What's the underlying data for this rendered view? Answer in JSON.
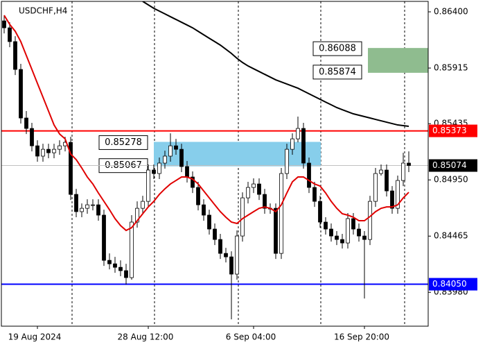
{
  "chart_data": {
    "type": "candlestick",
    "title": "USDCHF,H4",
    "categories": [
      null,
      null,
      null,
      null,
      null,
      null,
      "19 Aug 2024",
      null,
      null,
      null,
      null,
      null,
      null,
      null,
      null,
      null,
      null,
      null,
      null,
      null,
      null,
      null,
      null,
      null,
      null,
      null,
      "28 Aug 12:00",
      null,
      null,
      null,
      null,
      null,
      null,
      null,
      null,
      null,
      null,
      null,
      null,
      null,
      null,
      null,
      null,
      null,
      null,
      "6 Sep 04:00",
      null,
      null,
      null,
      null,
      null,
      null,
      null,
      null,
      null,
      null,
      null,
      null,
      null,
      null,
      null,
      null,
      null,
      null,
      null,
      "16 Sep 20:00",
      null,
      null,
      null,
      null,
      null,
      null,
      null,
      null
    ],
    "open": [
      0.86322,
      0.86262,
      0.86143,
      0.85903,
      0.85484,
      0.85394,
      0.85244,
      0.85155,
      0.85214,
      0.85184,
      0.85214,
      0.85244,
      0.85274,
      0.84825,
      0.84676,
      0.84705,
      0.84735,
      0.84735,
      0.84646,
      0.84256,
      0.84226,
      0.84196,
      0.84167,
      0.84107,
      0.84586,
      0.84705,
      0.84765,
      0.85035,
      0.85005,
      0.85095,
      0.85155,
      0.85244,
      0.85214,
      0.85065,
      0.84975,
      0.84885,
      0.84735,
      0.84646,
      0.84526,
      0.84436,
      0.84316,
      0.84286,
      0.84137,
      0.84466,
      0.84795,
      0.84885,
      0.84915,
      0.84825,
      0.84705,
      0.84705,
      0.84316,
      0.85005,
      0.85214,
      0.85304,
      0.85394,
      0.85095,
      0.84885,
      0.84765,
      0.84586,
      0.84526,
      0.84466,
      0.84436,
      0.84406,
      0.84616,
      0.84526,
      0.84466,
      0.84436,
      0.84765,
      0.85005,
      0.85035,
      0.84855,
      0.84705,
      0.84945,
      0.85095
    ],
    "high": [
      0.8637,
      0.8631,
      0.8619,
      0.85951,
      0.85544,
      0.85442,
      0.85292,
      0.85262,
      0.85262,
      0.85262,
      0.85292,
      0.85322,
      0.85322,
      0.84873,
      0.84747,
      0.84783,
      0.84783,
      0.84783,
      0.84693,
      0.84316,
      0.84286,
      0.84256,
      0.84226,
      0.84646,
      0.84765,
      0.84813,
      0.85083,
      0.85083,
      0.85143,
      0.85202,
      0.85352,
      0.85304,
      0.85262,
      0.85113,
      0.85023,
      0.84933,
      0.84783,
      0.84693,
      0.84574,
      0.84484,
      0.84364,
      0.84334,
      0.84514,
      0.84843,
      0.84933,
      0.84963,
      0.84963,
      0.84873,
      0.84747,
      0.84747,
      0.85053,
      0.85262,
      0.85352,
      0.85496,
      0.85442,
      0.85143,
      0.84933,
      0.84813,
      0.84628,
      0.84574,
      0.84508,
      0.84484,
      0.84664,
      0.84664,
      0.84574,
      0.84508,
      0.84813,
      0.85053,
      0.85083,
      0.85083,
      0.84897,
      0.84987,
      0.85184,
      0.85196
    ],
    "low": [
      0.86214,
      0.86095,
      0.85855,
      0.85436,
      0.85346,
      0.85196,
      0.85107,
      0.85107,
      0.85137,
      0.85137,
      0.85167,
      0.85196,
      0.84777,
      0.84628,
      0.84628,
      0.84658,
      0.84687,
      0.84598,
      0.84208,
      0.84178,
      0.84149,
      0.84119,
      0.84047,
      0.84089,
      0.84538,
      0.84658,
      0.84717,
      0.84957,
      0.84957,
      0.85047,
      0.85107,
      0.85167,
      0.85017,
      0.84927,
      0.84837,
      0.84687,
      0.84598,
      0.84478,
      0.84388,
      0.84268,
      0.84238,
      0.83747,
      0.84089,
      0.84418,
      0.84747,
      0.84837,
      0.84777,
      0.84658,
      0.84658,
      0.84268,
      0.84268,
      0.84957,
      0.85167,
      0.85274,
      0.85047,
      0.84837,
      0.84717,
      0.84538,
      0.84478,
      0.84418,
      0.84388,
      0.84358,
      0.84358,
      0.84478,
      0.84418,
      0.83927,
      0.84388,
      0.84717,
      0.84987,
      0.84807,
      0.84658,
      0.84658,
      0.84897,
      0.85017
    ],
    "close": [
      0.86262,
      0.86143,
      0.85903,
      0.85484,
      0.85394,
      0.85244,
      0.85155,
      0.85214,
      0.85184,
      0.85214,
      0.85244,
      0.85274,
      0.84825,
      0.84676,
      0.84705,
      0.84735,
      0.84735,
      0.84646,
      0.84256,
      0.84226,
      0.84196,
      0.84167,
      0.84107,
      0.84586,
      0.84705,
      0.84765,
      0.85035,
      0.85005,
      0.85095,
      0.85155,
      0.85244,
      0.85214,
      0.85065,
      0.84975,
      0.84885,
      0.84735,
      0.84646,
      0.84526,
      0.84436,
      0.84316,
      0.84286,
      0.84137,
      0.84466,
      0.84795,
      0.84885,
      0.84915,
      0.84825,
      0.84705,
      0.84705,
      0.84316,
      0.85005,
      0.85214,
      0.85304,
      0.85394,
      0.85095,
      0.84885,
      0.84765,
      0.84586,
      0.84526,
      0.84466,
      0.84436,
      0.84406,
      0.84616,
      0.84526,
      0.84466,
      0.84436,
      0.84765,
      0.85005,
      0.85035,
      0.84855,
      0.84705,
      0.84945,
      0.85095,
      0.85074
    ],
    "overlays": [
      {
        "color": "#e00000",
        "values": [
          0.8637,
          0.86292,
          0.86232,
          0.86143,
          0.86023,
          0.85903,
          0.85783,
          0.85664,
          0.85544,
          0.85424,
          0.85346,
          0.85304,
          0.85173,
          0.85125,
          0.85053,
          0.84975,
          0.84915,
          0.84837,
          0.84765,
          0.84693,
          0.84616,
          0.84556,
          0.84514,
          0.84538,
          0.84598,
          0.84658,
          0.84717,
          0.84765,
          0.84825,
          0.84873,
          0.84915,
          0.84945,
          0.84975,
          0.84975,
          0.84957,
          0.84915,
          0.84855,
          0.84795,
          0.84735,
          0.84676,
          0.84628,
          0.84586,
          0.84574,
          0.84616,
          0.84646,
          0.84676,
          0.84705,
          0.84717,
          0.84705,
          0.84676,
          0.84735,
          0.84837,
          0.84933,
          0.84975,
          0.84975,
          0.84945,
          0.84915,
          0.84897,
          0.84837,
          0.84765,
          0.84705,
          0.84658,
          0.84646,
          0.84628,
          0.84598,
          0.84598,
          0.84634,
          0.84676,
          0.84705,
          0.84717,
          0.84717,
          0.84735,
          0.84795,
          0.84843
        ]
      },
      {
        "color": "#000000",
        "values": [
          null,
          null,
          null,
          null,
          null,
          null,
          null,
          null,
          null,
          null,
          null,
          null,
          null,
          null,
          null,
          null,
          null,
          null,
          null,
          null,
          null,
          null,
          null,
          null,
          null,
          0.8649,
          0.8646,
          0.8643,
          0.86406,
          0.86382,
          0.86358,
          0.86334,
          0.8631,
          0.86286,
          0.86262,
          0.86232,
          0.86202,
          0.86172,
          0.86143,
          0.86113,
          0.86077,
          0.86041,
          0.85999,
          0.85963,
          0.85933,
          0.85909,
          0.85885,
          0.85861,
          0.85837,
          0.85813,
          0.85795,
          0.85777,
          0.85759,
          0.85741,
          0.85717,
          0.85693,
          0.85669,
          0.85645,
          0.85621,
          0.85598,
          0.85574,
          0.85556,
          0.85538,
          0.8552,
          0.85508,
          0.85496,
          0.85484,
          0.85472,
          0.8546,
          0.85448,
          0.85436,
          0.85424,
          0.85418,
          0.85412
        ]
      }
    ],
    "ylim": [
      0.83688,
      0.86502
    ],
    "yticks": [
      {
        "value": 0.864,
        "label": "0.86400"
      },
      {
        "value": 0.85915,
        "label": "0.85915"
      },
      {
        "value": 0.85435,
        "label": "0.85435"
      },
      {
        "value": 0.8495,
        "label": "0.84950"
      },
      {
        "value": 0.84465,
        "label": "0.84465"
      },
      {
        "value": 0.8398,
        "label": "0.83980"
      }
    ],
    "zones": [
      {
        "values": [
          0.86088,
          0.85874
        ],
        "color": "#8fbc8f"
      },
      {
        "values": [
          0.85278,
          0.85067
        ],
        "color": "#87ceeb"
      }
    ],
    "levels": [
      {
        "value": 0.85373,
        "label": "0.85373",
        "color": "#ff0000"
      },
      {
        "value": 0.8405,
        "label": "0.84050",
        "color": "#0000ff"
      }
    ],
    "price": {
      "value": 0.85074,
      "label": "0.85074",
      "color": "#000000"
    }
  }
}
